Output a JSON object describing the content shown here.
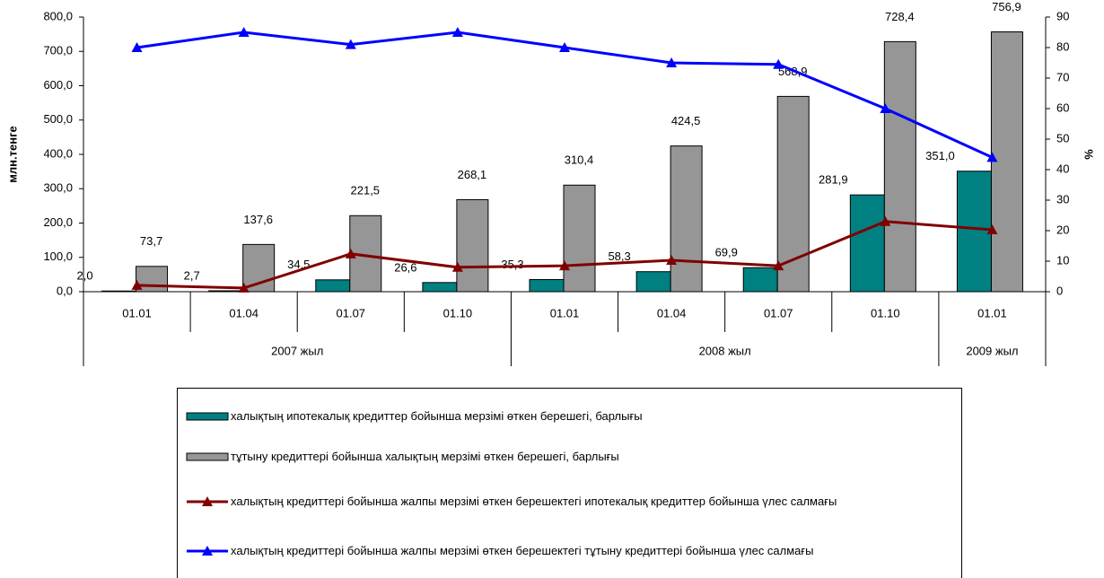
{
  "chart_data": {
    "type": "bar",
    "y_label": "млн.тенге",
    "y2_label": "%",
    "categories": [
      "01.01",
      "01.04",
      "01.07",
      "01.10",
      "01.01",
      "01.04",
      "01.07",
      "01.10",
      "01.01"
    ],
    "group_labels": [
      "2007 жыл",
      null,
      null,
      null,
      "2008 жыл",
      null,
      null,
      null,
      "2009 жыл"
    ],
    "ylim": [
      0,
      800
    ],
    "yticks": [
      {
        "value": 0,
        "label": "0,0"
      },
      {
        "value": 100,
        "label": "100,0"
      },
      {
        "value": 200,
        "label": "200,0"
      },
      {
        "value": 300,
        "label": "300,0"
      },
      {
        "value": 400,
        "label": "400,0"
      },
      {
        "value": 500,
        "label": "500,0"
      },
      {
        "value": 600,
        "label": "600,0"
      },
      {
        "value": 700,
        "label": "700,0"
      },
      {
        "value": 800,
        "label": "800,0"
      }
    ],
    "y2lim": [
      0,
      90
    ],
    "y2ticks": [
      0,
      10,
      20,
      30,
      40,
      50,
      60,
      70,
      80,
      90
    ],
    "series": [
      {
        "name": "халықтың ипотекалық кредиттер бойынша мерзімі өткен берешегі, барлығы",
        "type": "bar",
        "color": "#008080",
        "values": [
          2.0,
          2.7,
          34.5,
          26.6,
          35.3,
          58.3,
          69.9,
          281.9,
          351.0
        ],
        "value_labels": [
          "2,0",
          "2,7",
          "34,5",
          "26,6",
          "35,3",
          "58,3",
          "69,9",
          "281,9",
          "351,0"
        ]
      },
      {
        "name": "тұтыну  кредиттері бойынша халықтың мерзімі өткен берешегі, барлығы",
        "type": "bar",
        "color": "#969696",
        "values": [
          73.7,
          137.6,
          221.5,
          268.1,
          310.4,
          424.5,
          568.9,
          728.4,
          756.9
        ],
        "value_labels": [
          "73,7",
          "137,6",
          "221,5",
          "268,1",
          "310,4",
          "424,5",
          "568,9",
          "728,4",
          "756,9"
        ]
      },
      {
        "name": "халықтың кредиттері бойынша жалпы мерзімі өткен берешектегі ипотекалық кредиттер бойынша үлес салмағы",
        "type": "line",
        "axis": "y2",
        "color": "#800000",
        "values": [
          2.1,
          1.2,
          12.4,
          8.0,
          8.5,
          10.3,
          8.5,
          23.0,
          20.3
        ]
      },
      {
        "name": "халықтың кредиттері бойынша жалпы мерзімі өткен берешектегі тұтыну  кредиттері бойынша үлес салмағы",
        "type": "line",
        "axis": "y2",
        "color": "#0000ff",
        "values": [
          80,
          85,
          81,
          85,
          80,
          75,
          74.5,
          60,
          44
        ]
      }
    ]
  }
}
